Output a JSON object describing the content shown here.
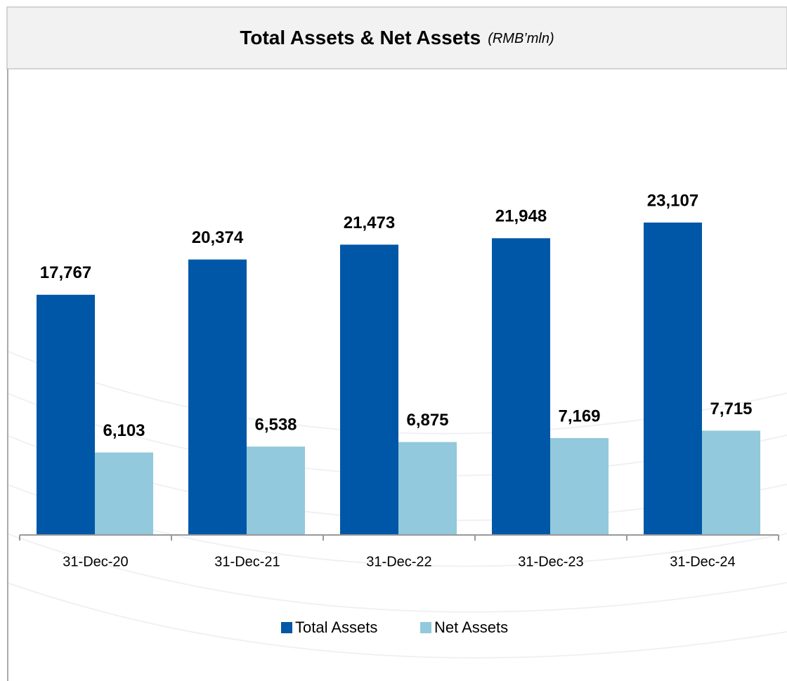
{
  "chart_data": {
    "type": "bar",
    "title": "Total Assets & Net Assets",
    "unit_label": "(RMB’mln)",
    "categories": [
      "31-Dec-20",
      "31-Dec-21",
      "31-Dec-22",
      "31-Dec-23",
      "31-Dec-24"
    ],
    "series": [
      {
        "name": "Total Assets",
        "color": "#0057a8",
        "values": [
          17767,
          20374,
          21473,
          21948,
          23107
        ],
        "value_labels": [
          "17,767",
          "20,374",
          "21,473",
          "21,948",
          "23,107"
        ]
      },
      {
        "name": "Net Assets",
        "color": "#92c9dc",
        "values": [
          6103,
          6538,
          6875,
          7169,
          7715
        ],
        "value_labels": [
          "6,103",
          "6,538",
          "6,875",
          "7,169",
          "7,715"
        ]
      }
    ],
    "legend": "bottom"
  }
}
